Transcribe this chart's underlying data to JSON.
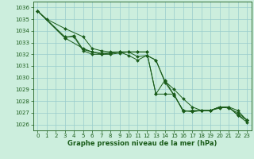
{
  "xlabel": "Graphe pression niveau de la mer (hPa)",
  "xlim": [
    -0.5,
    23.5
  ],
  "ylim": [
    1025.5,
    1036.5
  ],
  "yticks": [
    1026,
    1027,
    1028,
    1029,
    1030,
    1031,
    1032,
    1033,
    1034,
    1035,
    1036
  ],
  "xticks": [
    0,
    1,
    2,
    3,
    4,
    5,
    6,
    7,
    8,
    9,
    10,
    11,
    12,
    13,
    14,
    15,
    16,
    17,
    18,
    19,
    20,
    21,
    22,
    23
  ],
  "bg_color": "#cceedd",
  "grid_color": "#99cccc",
  "line_color": "#1a5c1a",
  "lines": [
    {
      "x": [
        0,
        1,
        3,
        5,
        6,
        7,
        8,
        9,
        10,
        11,
        12,
        13,
        14,
        15,
        16,
        17,
        18,
        19,
        20,
        21,
        22,
        23
      ],
      "y": [
        1035.7,
        1035.0,
        1034.2,
        1033.5,
        1032.5,
        1032.3,
        1032.2,
        1032.2,
        1031.9,
        1031.5,
        1031.9,
        1031.5,
        1029.7,
        1029.0,
        1028.2,
        1027.5,
        1027.2,
        1027.2,
        1027.5,
        1027.5,
        1026.8,
        1026.2
      ]
    },
    {
      "x": [
        0,
        3,
        4,
        5,
        6,
        7,
        8,
        9,
        10,
        11,
        12,
        13,
        14,
        15,
        16,
        17,
        18,
        19,
        20,
        21,
        22,
        23
      ],
      "y": [
        1035.7,
        1033.4,
        1033.6,
        1032.4,
        1032.2,
        1032.1,
        1032.1,
        1032.2,
        1032.2,
        1032.2,
        1032.2,
        1028.6,
        1029.8,
        1028.5,
        1027.2,
        1027.1,
        1027.2,
        1027.2,
        1027.5,
        1027.4,
        1027.0,
        1026.4
      ]
    },
    {
      "x": [
        0,
        3,
        4,
        5,
        6,
        7,
        8,
        9,
        10,
        11,
        12,
        13,
        14,
        15,
        16,
        17,
        18,
        19,
        20,
        21,
        22,
        23
      ],
      "y": [
        1035.7,
        1033.5,
        1033.5,
        1032.3,
        1032.0,
        1032.0,
        1032.1,
        1032.2,
        1032.2,
        1031.8,
        1031.9,
        1031.5,
        1029.6,
        1028.5,
        1027.2,
        1027.1,
        1027.2,
        1027.2,
        1027.5,
        1027.5,
        1026.8,
        1026.4
      ]
    },
    {
      "x": [
        0,
        3,
        5,
        6,
        7,
        8,
        9,
        10,
        11,
        12,
        13,
        14,
        15,
        16,
        17,
        18,
        19,
        20,
        21,
        22,
        23
      ],
      "y": [
        1035.7,
        1033.4,
        1032.5,
        1032.2,
        1032.0,
        1032.0,
        1032.1,
        1032.2,
        1032.2,
        1032.2,
        1028.6,
        1028.6,
        1028.6,
        1027.1,
        1027.2,
        1027.2,
        1027.2,
        1027.4,
        1027.5,
        1027.2,
        1026.35
      ]
    }
  ],
  "tick_fontsize": 5.0,
  "label_fontsize": 6.0
}
